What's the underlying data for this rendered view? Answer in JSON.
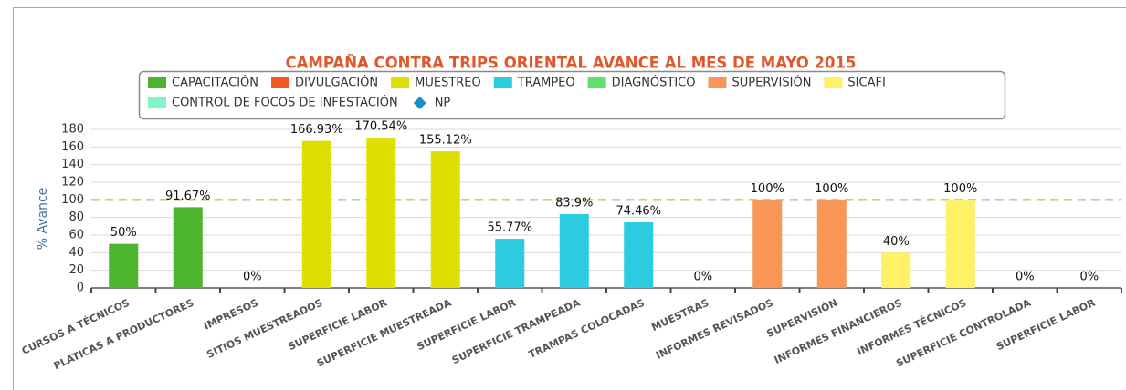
{
  "chart_data": {
    "type": "bar",
    "title": "CAMPAÑA CONTRA TRIPS ORIENTAL AVANCE AL MES DE MAYO 2015",
    "y_label": "% Avance",
    "categories": [
      "CURSOS A TÉCNICOS",
      "PLÁTICAS A PRODUCTORES",
      "IMPRESOS",
      "SITIOS MUESTREADOS",
      "SUPERFICIE LABOR",
      "SUPERFICIE MUESTREADA",
      "SUPERFICIE LABOR",
      "SUPERFICIE TRAMPEADA",
      "TRAMPAS COLOCADAS",
      "MUESTRAS",
      "INFORMES REVISADOS",
      "SUPERVISIÓN",
      "INFORMES FINANCIEROS",
      "INFORMES TÉCNICOS",
      "SUPERFICIE CONTROLADA",
      "SUPERFICIE LABOR"
    ],
    "series": [
      {
        "name": "CAPACITACIÓN",
        "color": "#4db52d",
        "values": [
          50,
          91.67,
          null,
          null,
          null,
          null,
          null,
          null,
          null,
          null,
          null,
          null,
          null,
          null,
          null,
          null
        ],
        "value_labels": [
          "50%",
          "91.67%",
          null,
          null,
          null,
          null,
          null,
          null,
          null,
          null,
          null,
          null,
          null,
          null,
          null,
          null
        ]
      },
      {
        "name": "DIVULGACIÓN",
        "color": "#f05a22",
        "values": [
          null,
          null,
          0,
          null,
          null,
          null,
          null,
          null,
          null,
          null,
          null,
          null,
          null,
          null,
          null,
          null
        ],
        "value_labels": [
          null,
          null,
          "0%",
          null,
          null,
          null,
          null,
          null,
          null,
          null,
          null,
          null,
          null,
          null,
          null,
          null
        ]
      },
      {
        "name": "MUESTREO",
        "color": "#dede00",
        "values": [
          null,
          null,
          null,
          166.93,
          170.54,
          155.12,
          null,
          null,
          null,
          null,
          null,
          null,
          null,
          null,
          null,
          null
        ],
        "value_labels": [
          null,
          null,
          null,
          "166.93%",
          "170.54%",
          "155.12%",
          null,
          null,
          null,
          null,
          null,
          null,
          null,
          null,
          null,
          null
        ]
      },
      {
        "name": "TRAMPEO",
        "color": "#2bcbe0",
        "values": [
          null,
          null,
          null,
          null,
          null,
          null,
          55.77,
          83.9,
          74.46,
          null,
          null,
          null,
          null,
          null,
          null,
          null
        ],
        "value_labels": [
          null,
          null,
          null,
          null,
          null,
          null,
          "55.77%",
          "83.9%",
          "74.46%",
          null,
          null,
          null,
          null,
          null,
          null,
          null
        ]
      },
      {
        "name": "DIAGNÓSTICO",
        "color": "#5ee070",
        "values": [
          null,
          null,
          null,
          null,
          null,
          null,
          null,
          null,
          null,
          0,
          null,
          null,
          null,
          null,
          null,
          null
        ],
        "value_labels": [
          null,
          null,
          null,
          null,
          null,
          null,
          null,
          null,
          null,
          "0%",
          null,
          null,
          null,
          null,
          null,
          null
        ]
      },
      {
        "name": "SUPERVISIÓN",
        "color": "#f79656",
        "values": [
          null,
          null,
          null,
          null,
          null,
          null,
          null,
          null,
          null,
          null,
          100,
          100,
          null,
          null,
          null,
          null
        ],
        "value_labels": [
          null,
          null,
          null,
          null,
          null,
          null,
          null,
          null,
          null,
          null,
          "100%",
          "100%",
          null,
          null,
          null,
          null
        ]
      },
      {
        "name": "SICAFI",
        "color": "#fff066",
        "values": [
          null,
          null,
          null,
          null,
          null,
          null,
          null,
          null,
          null,
          null,
          null,
          null,
          40,
          100,
          null,
          null
        ],
        "value_labels": [
          null,
          null,
          null,
          null,
          null,
          null,
          null,
          null,
          null,
          null,
          null,
          null,
          "40%",
          "100%",
          null,
          null
        ]
      },
      {
        "name": "CONTROL DE FOCOS DE INFESTACIÓN",
        "color": "#7ff5c8",
        "values": [
          null,
          null,
          null,
          null,
          null,
          null,
          null,
          null,
          null,
          null,
          null,
          null,
          null,
          null,
          0,
          0
        ],
        "value_labels": [
          null,
          null,
          null,
          null,
          null,
          null,
          null,
          null,
          null,
          null,
          null,
          null,
          null,
          null,
          "0%",
          "0%"
        ]
      },
      {
        "name": "NP",
        "color": "#1a8fc9",
        "marker": "diamond",
        "values": [
          null,
          null,
          null,
          null,
          null,
          null,
          null,
          null,
          null,
          null,
          null,
          null,
          null,
          null,
          null,
          null
        ]
      }
    ],
    "reference_line": {
      "value": 100,
      "color": "#7ac943"
    },
    "ylim": [
      0,
      180
    ],
    "yticks": [
      0,
      20,
      40,
      60,
      80,
      100,
      120,
      140,
      160,
      180
    ],
    "grid": true
  }
}
